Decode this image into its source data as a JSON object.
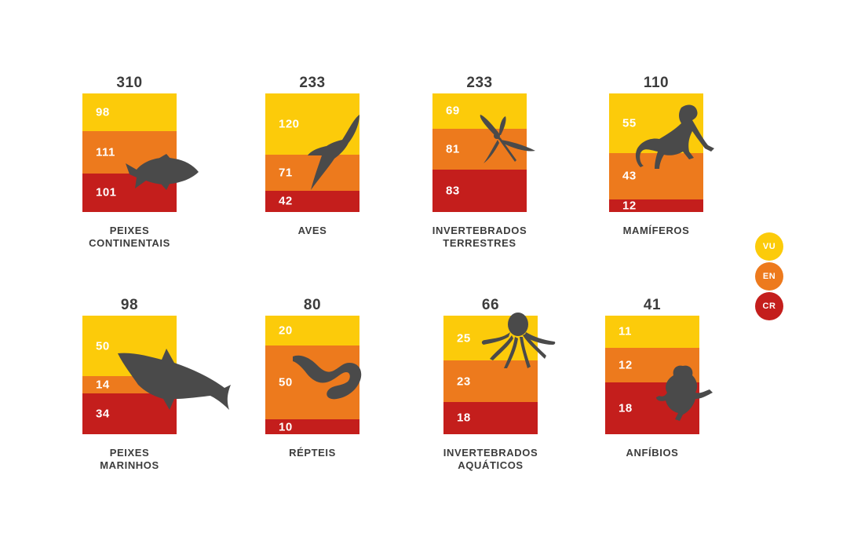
{
  "chart_data": {
    "type": "bar",
    "stacked": true,
    "stack_order": [
      "CR",
      "EN",
      "VU"
    ],
    "categories": [
      {
        "name": "PEIXES\nCONTINENTAIS",
        "total": "310",
        "VU": 98,
        "EN": 111,
        "CR": 101,
        "icon": "fish-icon"
      },
      {
        "name": "AVES",
        "total": "233",
        "VU": 120,
        "EN": 71,
        "CR": 42,
        "icon": "bird-icon"
      },
      {
        "name": "INVERTEBRADOS\nTERRESTRES",
        "total": "233",
        "VU": 69,
        "EN": 81,
        "CR": 83,
        "icon": "dragonfly-icon"
      },
      {
        "name": "MAMÍFEROS",
        "total": "110",
        "VU": 55,
        "EN": 43,
        "CR": 12,
        "icon": "monkey-icon"
      },
      {
        "name": "PEIXES\nMARINHOS",
        "total": "98",
        "VU": 50,
        "EN": 14,
        "CR": 34,
        "icon": "shark-icon"
      },
      {
        "name": "RÉPTEIS",
        "total": "80",
        "VU": 20,
        "EN": 50,
        "CR": 10,
        "icon": "snake-icon"
      },
      {
        "name": "INVERTEBRADOS\nAQUÁTICOS",
        "total": "66",
        "VU": 25,
        "EN": 23,
        "CR": 18,
        "icon": "octopus-icon"
      },
      {
        "name": "ANFÍBIOS",
        "total": "41",
        "VU": 11,
        "EN": 12,
        "CR": 18,
        "icon": "frog-icon"
      }
    ],
    "legend": {
      "placement": "right",
      "entries": [
        {
          "key": "VU",
          "label": "VU",
          "color": "#fccb0a"
        },
        {
          "key": "EN",
          "label": "EN",
          "color": "#ed7a1d"
        },
        {
          "key": "CR",
          "label": "CR",
          "color": "#c41e1c"
        }
      ]
    },
    "title": "",
    "xlabel": "",
    "ylabel": "",
    "grid": false
  },
  "colors": {
    "vu": "#fccb0a",
    "en": "#ed7a1d",
    "cr": "#c41e1c",
    "text": "#3c3c3c",
    "silhouette": "#4a4a4a"
  }
}
